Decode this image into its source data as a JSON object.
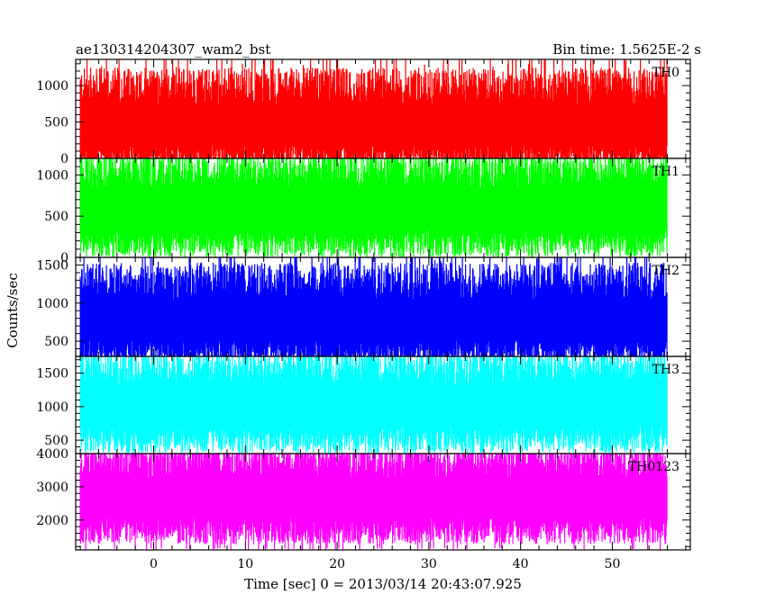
{
  "header": {
    "left": "ae130314204307_wam2_bst",
    "right": "Bin time: 1.5625E-2 s"
  },
  "chart_data": {
    "type": "line",
    "title": "ae130314204307_wam2_bst",
    "subtitle": "Bin time: 1.5625E-2 s",
    "xlabel": "Time [sec] 0 = 2013/03/14 20:43:07.925",
    "ylabel": "Counts/sec",
    "xlim": [
      -8.5,
      58.5
    ],
    "x_data_range": [
      -8,
      56
    ],
    "x_ticks": [
      0,
      10,
      20,
      30,
      40,
      50
    ],
    "grid": false,
    "legend": "none",
    "panels": [
      {
        "name": "TH0",
        "color": "#ff0000",
        "ylim": [
          0,
          1360
        ],
        "y_ticks": [
          0,
          500,
          1000
        ],
        "baseline": 430,
        "max_peak": 1360,
        "min_trough": 10
      },
      {
        "name": "TH1",
        "color": "#00ff00",
        "ylim": [
          0,
          1200
        ],
        "y_ticks": [
          0,
          500,
          1000
        ],
        "baseline": 560,
        "max_peak": 1200,
        "min_trough": 10
      },
      {
        "name": "TH2",
        "color": "#0000ff",
        "ylim": [
          300,
          1600
        ],
        "y_ticks": [
          500,
          1000,
          1500
        ],
        "baseline": 750,
        "max_peak": 1600,
        "min_trough": 300
      },
      {
        "name": "TH3",
        "color": "#00ffff",
        "ylim": [
          300,
          1750
        ],
        "y_ticks": [
          500,
          1000,
          1500
        ],
        "baseline": 980,
        "max_peak": 1750,
        "min_trough": 300
      },
      {
        "name": "TH0123",
        "color": "#ff00ff",
        "ylim": [
          1100,
          4000
        ],
        "y_ticks": [
          2000,
          3000,
          4000
        ],
        "baseline": 2600,
        "max_peak": 4000,
        "min_trough": 1100
      }
    ]
  }
}
